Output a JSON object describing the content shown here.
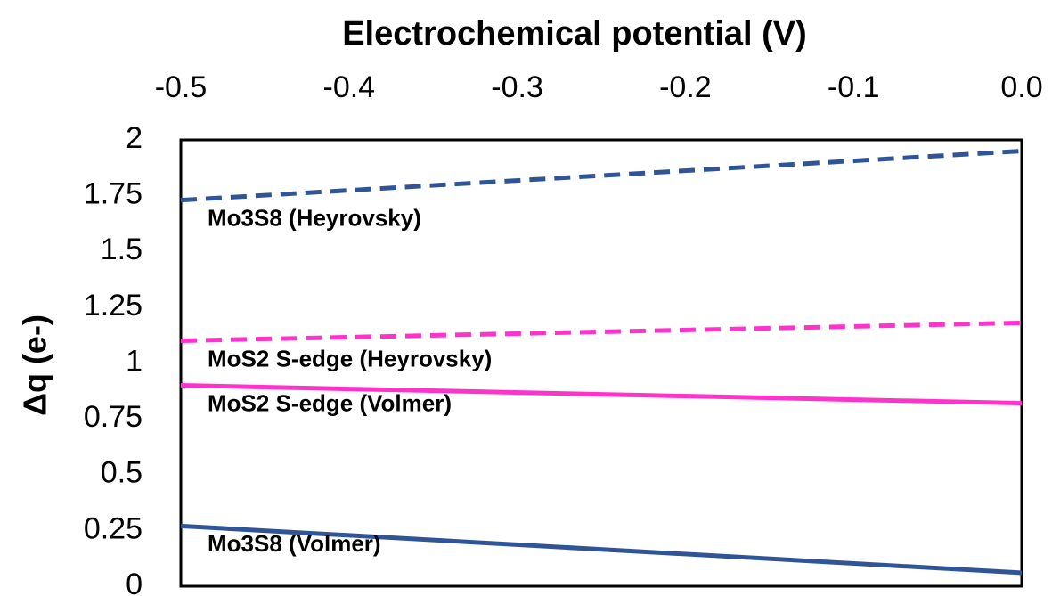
{
  "chart_data": {
    "type": "line",
    "title": "Electrochemical potential (V)",
    "y_label": "Δq (e-)",
    "x": [
      -0.5,
      0
    ],
    "xlim": [
      -0.5,
      0
    ],
    "xticks": [
      -0.5,
      -0.4,
      -0.3,
      -0.2,
      -0.1,
      {
        "value": 0,
        "label": "0.0"
      }
    ],
    "x_axis_position": "top",
    "ylim": [
      0,
      2
    ],
    "yticks": [
      0,
      0.25,
      0.5,
      0.75,
      1,
      1.25,
      1.5,
      1.75,
      2
    ],
    "grid": false,
    "series": [
      {
        "name": "Mo3S8 (Heyrovsky)",
        "color": "#2f5597",
        "style": "dashed",
        "values": [
          1.73,
          1.95
        ]
      },
      {
        "name": "MoS2 S-edge (Heyrovsky)",
        "color": "#ff33cc",
        "style": "dashed",
        "values": [
          1.1,
          1.18
        ]
      },
      {
        "name": "MoS2 S-edge (Volmer)",
        "color": "#ff33cc",
        "style": "solid",
        "values": [
          0.9,
          0.82
        ]
      },
      {
        "name": "Mo3S8 (Volmer)",
        "color": "#2f5597",
        "style": "solid",
        "values": [
          0.27,
          0.06
        ]
      }
    ]
  }
}
